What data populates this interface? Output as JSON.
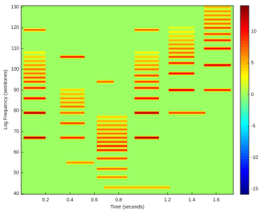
{
  "chart_data": {
    "type": "heatmap",
    "x_label": "Time (seconds)",
    "y_label": "Log Frequency (semitones)",
    "xlim": [
      0,
      1.74
    ],
    "xticks": [
      0.2,
      0.4,
      0.6,
      0.8,
      1.2,
      1.4,
      1.6
    ],
    "ylim": [
      39.7,
      130.7
    ],
    "yticks": [
      40,
      50,
      60,
      70,
      80,
      90,
      100,
      110,
      120,
      130
    ],
    "zlim": [
      -15.8,
      14.1
    ],
    "zticks": [
      -15,
      -10,
      -5,
      0,
      5,
      10
    ],
    "colormap": "jet",
    "background_value": 0,
    "segments": [
      {
        "start": 0.02,
        "end": 0.2,
        "freqs": [
          67,
          79,
          86,
          91,
          94,
          96,
          98,
          100,
          102,
          104,
          106,
          108,
          119
        ],
        "values": [
          12,
          12,
          10,
          9,
          8,
          8,
          7,
          7,
          6,
          5,
          4,
          3,
          7
        ]
      },
      {
        "start": 0.32,
        "end": 0.52,
        "freqs": [
          67,
          74,
          79,
          82,
          84,
          86,
          88,
          90,
          106
        ],
        "values": [
          9,
          8,
          7,
          7,
          6,
          6,
          5,
          4,
          9
        ]
      },
      {
        "start": 0.37,
        "end": 0.6,
        "freqs": [
          55
        ],
        "values": [
          6
        ]
      },
      {
        "start": 0.62,
        "end": 0.87,
        "freqs": [
          48,
          52,
          57,
          61,
          63,
          65,
          67,
          69,
          71,
          73,
          75,
          77
        ],
        "values": [
          6,
          7,
          8,
          9,
          9,
          8,
          8,
          7,
          7,
          6,
          5,
          4
        ]
      },
      {
        "start": 0.68,
        "end": 1.22,
        "freqs": [
          43
        ],
        "values": [
          5
        ]
      },
      {
        "start": 0.62,
        "end": 0.76,
        "freqs": [
          94
        ],
        "values": [
          7
        ]
      },
      {
        "start": 0.93,
        "end": 1.13,
        "freqs": [
          67,
          79,
          86,
          91,
          94,
          97,
          100,
          102,
          104,
          106,
          108,
          119
        ],
        "values": [
          12,
          12,
          10,
          9,
          8,
          8,
          7,
          6,
          5,
          4,
          3,
          7
        ]
      },
      {
        "start": 1.21,
        "end": 1.42,
        "freqs": [
          90,
          98,
          103,
          106,
          108,
          110,
          112,
          114,
          116,
          118,
          120
        ],
        "values": [
          11,
          10,
          9,
          8,
          7,
          7,
          6,
          5,
          4,
          3,
          2
        ]
      },
      {
        "start": 1.21,
        "end": 1.51,
        "freqs": [
          79
        ],
        "values": [
          8
        ]
      },
      {
        "start": 1.5,
        "end": 1.72,
        "freqs": [
          90,
          102,
          110,
          114,
          117,
          120,
          122,
          124,
          126,
          128,
          130
        ],
        "values": [
          9,
          11,
          10,
          9,
          8,
          8,
          7,
          7,
          6,
          6,
          5
        ]
      }
    ]
  }
}
